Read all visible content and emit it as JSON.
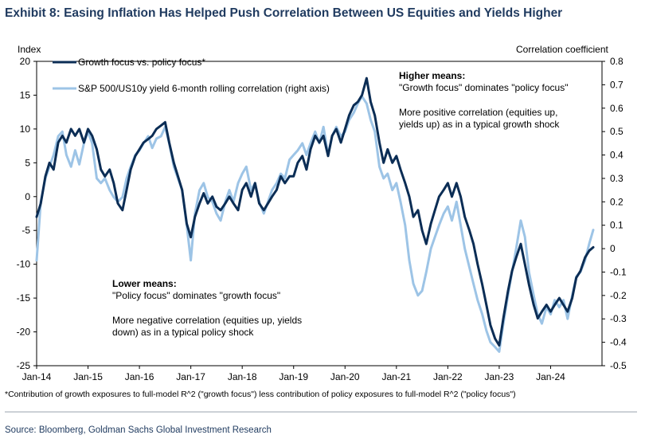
{
  "header": {
    "title": "Exhibit 8: Easing Inflation Has Helped Push Correlation Between US Equities and Yields Higher"
  },
  "chart_data": {
    "type": "line",
    "y_left_label": "Index",
    "y_right_label": "Correlation coefficient",
    "ylim_left": [
      -25,
      20
    ],
    "ylim_right": [
      -0.5,
      0.8
    ],
    "yticks_left": [
      "20",
      "15",
      "10",
      "5",
      "0",
      "-5",
      "-10",
      "-15",
      "-20",
      "-25"
    ],
    "yticks_right": [
      "0.8",
      "0.7",
      "0.6",
      "0.5",
      "0.4",
      "0.3",
      "0.2",
      "0.1",
      "0",
      "-0.1",
      "-0.2",
      "-0.3",
      "-0.4",
      "-0.5"
    ],
    "xlim": [
      2014.0,
      2025.0
    ],
    "xticks": [
      {
        "label": "Jan-14",
        "x": 2014
      },
      {
        "label": "Jan-15",
        "x": 2015
      },
      {
        "label": "Jan-16",
        "x": 2016
      },
      {
        "label": "Jan-17",
        "x": 2017
      },
      {
        "label": "Jan-18",
        "x": 2018
      },
      {
        "label": "Jan-19",
        "x": 2019
      },
      {
        "label": "Jan-20",
        "x": 2020
      },
      {
        "label": "Jan-21",
        "x": 2021
      },
      {
        "label": "Jan-22",
        "x": 2022
      },
      {
        "label": "Jan-23",
        "x": 2023
      },
      {
        "label": "Jan-24",
        "x": 2024
      }
    ],
    "legend_position": "top-left",
    "series": [
      {
        "name": "Growth focus vs. policy focus*",
        "axis": "left",
        "color": "#0b2d55",
        "points": [
          [
            2014.0,
            -3
          ],
          [
            2014.08,
            -1
          ],
          [
            2014.17,
            3
          ],
          [
            2014.25,
            5
          ],
          [
            2014.33,
            4
          ],
          [
            2014.42,
            8
          ],
          [
            2014.5,
            9
          ],
          [
            2014.58,
            8
          ],
          [
            2014.67,
            10
          ],
          [
            2014.75,
            9
          ],
          [
            2014.83,
            10
          ],
          [
            2014.92,
            8
          ],
          [
            2015.0,
            10
          ],
          [
            2015.08,
            9
          ],
          [
            2015.17,
            7
          ],
          [
            2015.25,
            4
          ],
          [
            2015.33,
            3
          ],
          [
            2015.42,
            4
          ],
          [
            2015.5,
            2
          ],
          [
            2015.58,
            -1
          ],
          [
            2015.67,
            -2
          ],
          [
            2015.75,
            1
          ],
          [
            2015.83,
            4
          ],
          [
            2015.92,
            6
          ],
          [
            2016.0,
            7
          ],
          [
            2016.08,
            8
          ],
          [
            2016.17,
            8.5
          ],
          [
            2016.25,
            9
          ],
          [
            2016.33,
            10
          ],
          [
            2016.42,
            10.5
          ],
          [
            2016.5,
            11
          ],
          [
            2016.58,
            8
          ],
          [
            2016.67,
            5
          ],
          [
            2016.75,
            3
          ],
          [
            2016.83,
            1
          ],
          [
            2016.92,
            -4
          ],
          [
            2017.0,
            -6
          ],
          [
            2017.08,
            -3
          ],
          [
            2017.17,
            -1
          ],
          [
            2017.25,
            0.5
          ],
          [
            2017.33,
            -1
          ],
          [
            2017.42,
            0
          ],
          [
            2017.5,
            -1.5
          ],
          [
            2017.58,
            -2
          ],
          [
            2017.67,
            -1
          ],
          [
            2017.75,
            0
          ],
          [
            2017.83,
            -1
          ],
          [
            2017.92,
            -2
          ],
          [
            2018.0,
            1
          ],
          [
            2018.08,
            2
          ],
          [
            2018.17,
            0
          ],
          [
            2018.25,
            2
          ],
          [
            2018.33,
            -1
          ],
          [
            2018.42,
            -2
          ],
          [
            2018.5,
            -1
          ],
          [
            2018.58,
            0
          ],
          [
            2018.67,
            1
          ],
          [
            2018.75,
            3
          ],
          [
            2018.83,
            2
          ],
          [
            2018.92,
            3
          ],
          [
            2019.0,
            3
          ],
          [
            2019.08,
            5
          ],
          [
            2019.17,
            6
          ],
          [
            2019.25,
            4
          ],
          [
            2019.33,
            7
          ],
          [
            2019.42,
            9
          ],
          [
            2019.5,
            8
          ],
          [
            2019.58,
            9
          ],
          [
            2019.67,
            6
          ],
          [
            2019.75,
            9
          ],
          [
            2019.83,
            10
          ],
          [
            2019.92,
            8
          ],
          [
            2020.0,
            10
          ],
          [
            2020.08,
            12
          ],
          [
            2020.17,
            13.5
          ],
          [
            2020.25,
            14
          ],
          [
            2020.33,
            15
          ],
          [
            2020.42,
            17.5
          ],
          [
            2020.5,
            14
          ],
          [
            2020.58,
            12
          ],
          [
            2020.67,
            8
          ],
          [
            2020.75,
            5
          ],
          [
            2020.83,
            7
          ],
          [
            2020.92,
            5
          ],
          [
            2021.0,
            6
          ],
          [
            2021.08,
            4
          ],
          [
            2021.17,
            2
          ],
          [
            2021.25,
            0
          ],
          [
            2021.33,
            -3
          ],
          [
            2021.42,
            -2
          ],
          [
            2021.5,
            -5
          ],
          [
            2021.58,
            -7
          ],
          [
            2021.67,
            -4
          ],
          [
            2021.75,
            -2
          ],
          [
            2021.83,
            0
          ],
          [
            2021.92,
            1
          ],
          [
            2022.0,
            2
          ],
          [
            2022.08,
            0
          ],
          [
            2022.17,
            2
          ],
          [
            2022.25,
            0
          ],
          [
            2022.33,
            -3
          ],
          [
            2022.42,
            -5
          ],
          [
            2022.5,
            -7
          ],
          [
            2022.58,
            -10
          ],
          [
            2022.67,
            -13
          ],
          [
            2022.75,
            -16
          ],
          [
            2022.83,
            -19
          ],
          [
            2022.92,
            -21
          ],
          [
            2023.0,
            -22
          ],
          [
            2023.08,
            -18
          ],
          [
            2023.17,
            -14
          ],
          [
            2023.25,
            -11
          ],
          [
            2023.33,
            -9
          ],
          [
            2023.42,
            -7
          ],
          [
            2023.5,
            -10
          ],
          [
            2023.58,
            -13
          ],
          [
            2023.67,
            -16
          ],
          [
            2023.75,
            -18
          ],
          [
            2023.83,
            -17
          ],
          [
            2023.92,
            -16
          ],
          [
            2024.0,
            -17
          ],
          [
            2024.08,
            -16
          ],
          [
            2024.17,
            -15
          ],
          [
            2024.25,
            -16
          ],
          [
            2024.33,
            -17
          ],
          [
            2024.42,
            -15
          ],
          [
            2024.5,
            -12
          ],
          [
            2024.58,
            -11
          ],
          [
            2024.67,
            -9
          ],
          [
            2024.75,
            -8
          ],
          [
            2024.83,
            -7.5
          ]
        ]
      },
      {
        "name": "S&P 500/US10y yield 6-month rolling correlation (right axis)",
        "axis": "right",
        "color": "#9dc4e6",
        "points": [
          [
            2014.0,
            -0.05
          ],
          [
            2014.08,
            0.2
          ],
          [
            2014.17,
            0.3
          ],
          [
            2014.25,
            0.35
          ],
          [
            2014.33,
            0.4
          ],
          [
            2014.42,
            0.48
          ],
          [
            2014.5,
            0.5
          ],
          [
            2014.58,
            0.4
          ],
          [
            2014.67,
            0.35
          ],
          [
            2014.75,
            0.42
          ],
          [
            2014.83,
            0.36
          ],
          [
            2014.92,
            0.45
          ],
          [
            2015.0,
            0.5
          ],
          [
            2015.08,
            0.45
          ],
          [
            2015.17,
            0.3
          ],
          [
            2015.25,
            0.28
          ],
          [
            2015.33,
            0.3
          ],
          [
            2015.42,
            0.25
          ],
          [
            2015.5,
            0.22
          ],
          [
            2015.58,
            0.2
          ],
          [
            2015.67,
            0.22
          ],
          [
            2015.75,
            0.3
          ],
          [
            2015.83,
            0.35
          ],
          [
            2015.92,
            0.4
          ],
          [
            2016.0,
            0.42
          ],
          [
            2016.08,
            0.45
          ],
          [
            2016.17,
            0.48
          ],
          [
            2016.25,
            0.43
          ],
          [
            2016.33,
            0.47
          ],
          [
            2016.42,
            0.48
          ],
          [
            2016.5,
            0.52
          ],
          [
            2016.58,
            0.45
          ],
          [
            2016.67,
            0.35
          ],
          [
            2016.75,
            0.3
          ],
          [
            2016.83,
            0.25
          ],
          [
            2016.92,
            0.1
          ],
          [
            2017.0,
            -0.05
          ],
          [
            2017.08,
            0.15
          ],
          [
            2017.17,
            0.25
          ],
          [
            2017.25,
            0.28
          ],
          [
            2017.33,
            0.22
          ],
          [
            2017.42,
            0.2
          ],
          [
            2017.5,
            0.15
          ],
          [
            2017.58,
            0.12
          ],
          [
            2017.67,
            0.2
          ],
          [
            2017.75,
            0.25
          ],
          [
            2017.83,
            0.2
          ],
          [
            2017.92,
            0.28
          ],
          [
            2018.0,
            0.32
          ],
          [
            2018.08,
            0.35
          ],
          [
            2018.17,
            0.25
          ],
          [
            2018.25,
            0.28
          ],
          [
            2018.33,
            0.2
          ],
          [
            2018.42,
            0.15
          ],
          [
            2018.5,
            0.2
          ],
          [
            2018.58,
            0.25
          ],
          [
            2018.67,
            0.28
          ],
          [
            2018.75,
            0.32
          ],
          [
            2018.83,
            0.3
          ],
          [
            2018.92,
            0.38
          ],
          [
            2019.0,
            0.4
          ],
          [
            2019.08,
            0.42
          ],
          [
            2019.17,
            0.45
          ],
          [
            2019.25,
            0.4
          ],
          [
            2019.33,
            0.45
          ],
          [
            2019.42,
            0.5
          ],
          [
            2019.5,
            0.45
          ],
          [
            2019.58,
            0.52
          ],
          [
            2019.67,
            0.4
          ],
          [
            2019.75,
            0.48
          ],
          [
            2019.83,
            0.52
          ],
          [
            2019.92,
            0.48
          ],
          [
            2020.0,
            0.5
          ],
          [
            2020.08,
            0.55
          ],
          [
            2020.17,
            0.58
          ],
          [
            2020.25,
            0.62
          ],
          [
            2020.33,
            0.65
          ],
          [
            2020.42,
            0.62
          ],
          [
            2020.5,
            0.55
          ],
          [
            2020.58,
            0.5
          ],
          [
            2020.67,
            0.35
          ],
          [
            2020.75,
            0.3
          ],
          [
            2020.83,
            0.32
          ],
          [
            2020.92,
            0.25
          ],
          [
            2021.0,
            0.28
          ],
          [
            2021.08,
            0.2
          ],
          [
            2021.17,
            0.1
          ],
          [
            2021.25,
            -0.05
          ],
          [
            2021.33,
            -0.15
          ],
          [
            2021.42,
            -0.2
          ],
          [
            2021.5,
            -0.18
          ],
          [
            2021.58,
            -0.1
          ],
          [
            2021.67,
            0.0
          ],
          [
            2021.75,
            0.05
          ],
          [
            2021.83,
            0.1
          ],
          [
            2021.92,
            0.15
          ],
          [
            2022.0,
            0.18
          ],
          [
            2022.08,
            0.12
          ],
          [
            2022.17,
            0.2
          ],
          [
            2022.25,
            0.1
          ],
          [
            2022.33,
            0.0
          ],
          [
            2022.42,
            -0.08
          ],
          [
            2022.5,
            -0.15
          ],
          [
            2022.58,
            -0.22
          ],
          [
            2022.67,
            -0.28
          ],
          [
            2022.75,
            -0.35
          ],
          [
            2022.83,
            -0.4
          ],
          [
            2022.92,
            -0.42
          ],
          [
            2023.0,
            -0.44
          ],
          [
            2023.08,
            -0.32
          ],
          [
            2023.17,
            -0.2
          ],
          [
            2023.25,
            -0.1
          ],
          [
            2023.33,
            0.0
          ],
          [
            2023.42,
            0.12
          ],
          [
            2023.5,
            0.05
          ],
          [
            2023.58,
            -0.1
          ],
          [
            2023.67,
            -0.2
          ],
          [
            2023.75,
            -0.28
          ],
          [
            2023.83,
            -0.32
          ],
          [
            2023.92,
            -0.25
          ],
          [
            2024.0,
            -0.28
          ],
          [
            2024.08,
            -0.22
          ],
          [
            2024.17,
            -0.25
          ],
          [
            2024.25,
            -0.22
          ],
          [
            2024.33,
            -0.3
          ],
          [
            2024.42,
            -0.2
          ],
          [
            2024.5,
            -0.12
          ],
          [
            2024.58,
            -0.1
          ],
          [
            2024.67,
            -0.05
          ],
          [
            2024.75,
            0.02
          ],
          [
            2024.83,
            0.08
          ]
        ]
      }
    ],
    "annotations": {
      "higher_head": "Higher means:",
      "higher_line1": "\"Growth focus\" dominates \"policy focus\"",
      "higher_line2": "More positive correlation (equities up,",
      "higher_line3": "yields up) as in a typical growth shock",
      "lower_head": "Lower means:",
      "lower_line1": "\"Policy focus\" dominates \"growth focus\"",
      "lower_line2": "More negative correlation (equities up, yields",
      "lower_line3": "down) as in a typical policy shock"
    }
  },
  "footnote": "*Contribution of growth exposures to full-model R^2 (\"growth focus\") less contribution of policy exposures to full-model R^2 (\"policy focus\")",
  "source": "Source: Bloomberg, Goldman Sachs Global Investment Research"
}
